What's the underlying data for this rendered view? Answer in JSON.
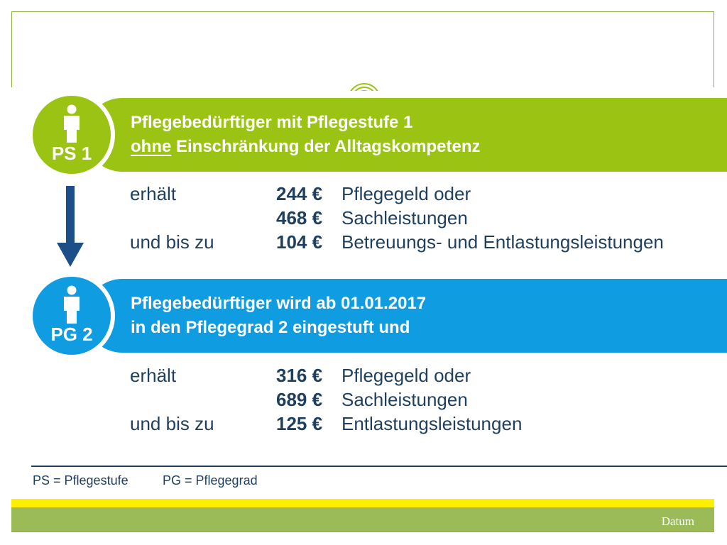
{
  "block_ps1": {
    "badge_label": "PS 1",
    "headline_line1": "Pflegebedürftiger mit Pflegestufe 1",
    "headline_line2_underlined": "ohne",
    "headline_line2_rest": " Einschränkung der Alltagskompetenz",
    "rows": [
      {
        "label": "erhält",
        "amount": "244 €",
        "description": "Pflegegeld oder"
      },
      {
        "label": "",
        "amount": "468 €",
        "description": "Sachleistungen"
      },
      {
        "label": "und bis zu",
        "amount": "104 €",
        "description": "Betreuungs- und Entlastungsleistungen"
      }
    ]
  },
  "block_pg2": {
    "badge_label": "PG 2",
    "headline_line1": "Pflegebedürftiger wird ab 01.01.2017",
    "headline_line2": "in den Pflegegrad 2 eingestuft und",
    "rows": [
      {
        "label": "erhält",
        "amount": "316 €",
        "description": "Pflegegeld oder"
      },
      {
        "label": "",
        "amount": "689 €",
        "description": "Sachleistungen"
      },
      {
        "label": "und bis zu",
        "amount": "125 €",
        "description": "Entlastungsleistungen"
      }
    ]
  },
  "legend": {
    "ps": "PS = Pflegestufe",
    "pg": "PG = Pflegegrad"
  },
  "footer": {
    "date_label": "Datum"
  },
  "colors": {
    "green": "#9bc313",
    "blue": "#0f9ce0",
    "text_navy": "#1f3f5e",
    "arrow_navy": "#1c4e88",
    "footer_yellow": "#ffef00",
    "footer_green": "#9bbb59"
  }
}
